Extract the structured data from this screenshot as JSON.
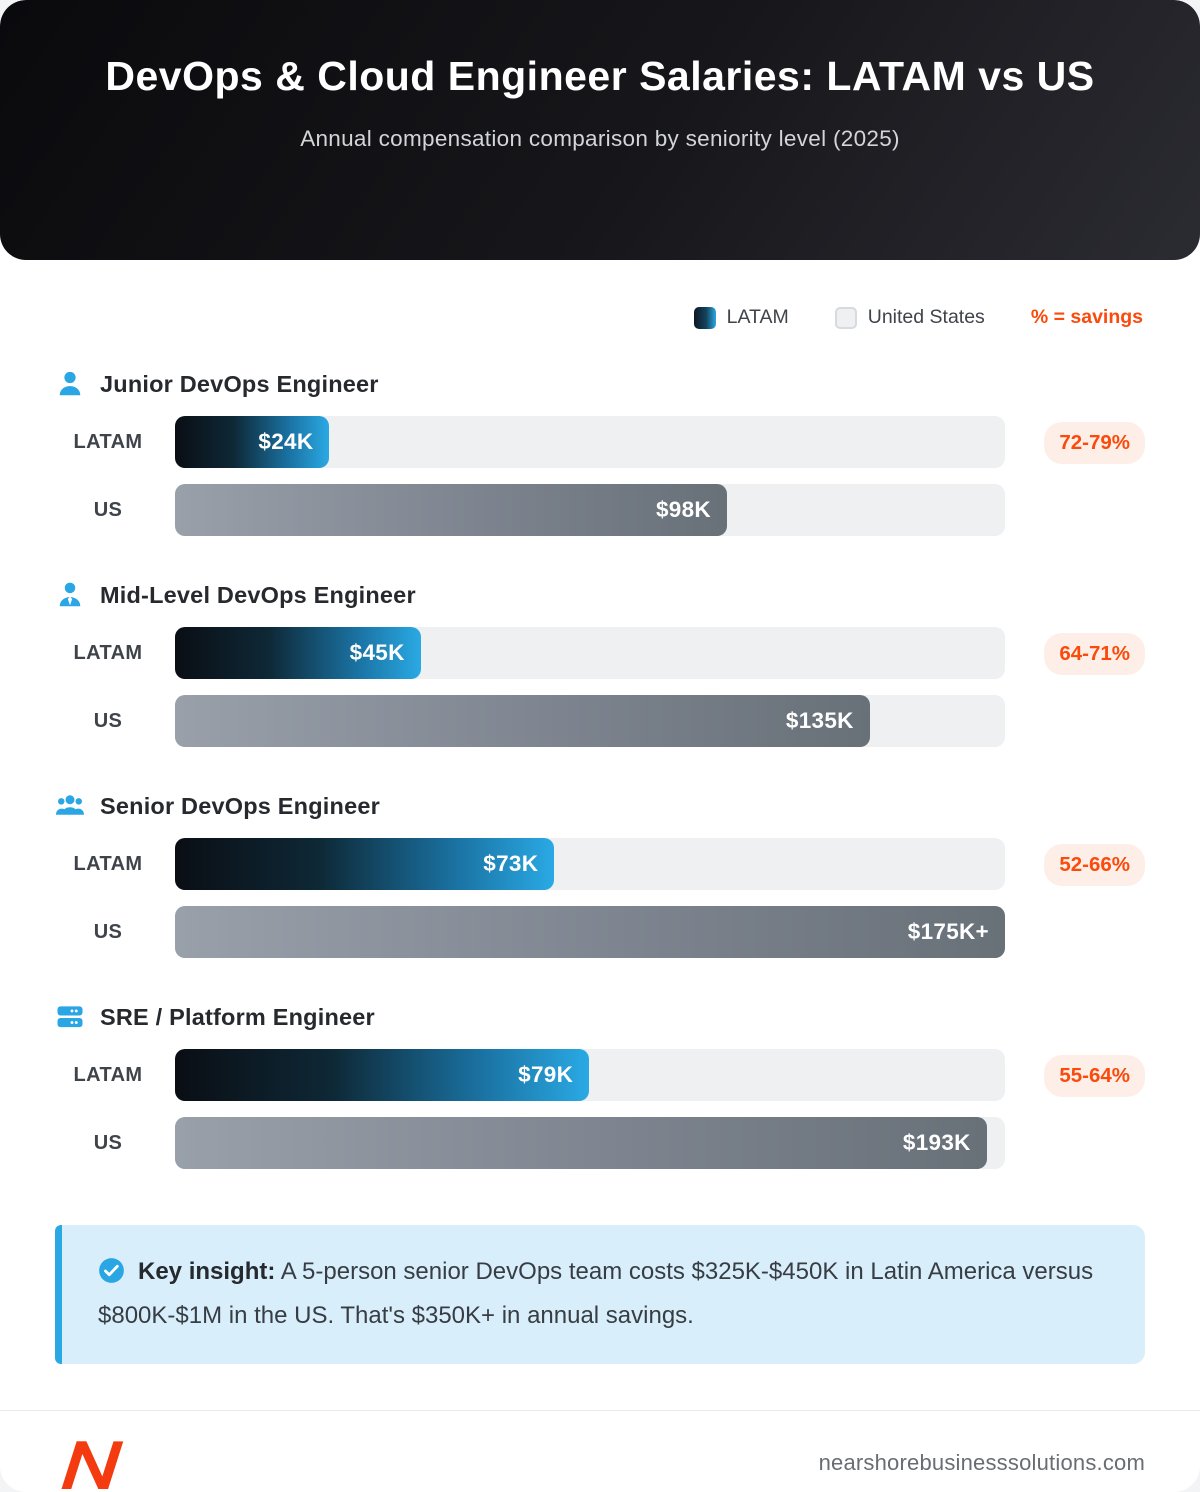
{
  "page": {
    "header": {
      "title": "DevOps & Cloud Engineer Salaries: LATAM vs US",
      "subtitle": "Annual compensation comparison by seniority level (2025)"
    },
    "legend": {
      "latam": "LATAM",
      "us": "United States",
      "savings_note": "% = savings"
    },
    "labels": {
      "latam": "LATAM",
      "us": "US"
    },
    "insight": {
      "title": "Key insight:",
      "text": " A 5-person senior DevOps team costs $325K-$450K in Latin America versus $800K-$1M in the US. That's $350K+ in annual savings."
    },
    "footer": {
      "domain": "nearshorebusinesssolutions.com"
    }
  },
  "colors": {
    "accent_blue": "#29A6E3",
    "accent_orange": "#FA4A0C",
    "badge_bg": "#FDEFE7",
    "bar_track": "#EEF0F2",
    "latam_gradient_start": "#0A0E14",
    "latam_gradient_end": "#2AA9E4",
    "us_gradient_start": "#99A0AA",
    "us_gradient_end": "#687078",
    "insight_bg": "#D8EEFA",
    "header_bg": "#111114",
    "logo_orange": "#F43B10"
  },
  "chart_data": {
    "type": "bar",
    "title": "DevOps & Cloud Engineer Salaries: LATAM vs US",
    "subtitle": "Annual compensation comparison by seniority level (2025)",
    "unit": "USD per year",
    "legend": [
      "LATAM",
      "United States"
    ],
    "sections": [
      {
        "role": "Junior DevOps Engineer",
        "icon": "person-icon",
        "latam_value": 24000,
        "latam_label": "$24K",
        "latam_pct": 18.6,
        "us_value": 98000,
        "us_label": "$98K",
        "us_pct": 66.5,
        "savings": "72-79%"
      },
      {
        "role": "Mid-Level DevOps Engineer",
        "icon": "person-tie-icon",
        "latam_value": 45000,
        "latam_label": "$45K",
        "latam_pct": 29.6,
        "us_value": 135000,
        "us_label": "$135K",
        "us_pct": 83.7,
        "savings": "64-71%"
      },
      {
        "role": "Senior DevOps Engineer",
        "icon": "team-icon",
        "latam_value": 73000,
        "latam_label": "$73K",
        "latam_pct": 45.7,
        "us_value": 175000,
        "us_label": "$175K+",
        "us_pct": 100,
        "savings": "52-66%"
      },
      {
        "role": "SRE / Platform Engineer",
        "icon": "server-icon",
        "latam_value": 79000,
        "latam_label": "$79K",
        "latam_pct": 49.9,
        "us_value": 193000,
        "us_label": "$193K",
        "us_pct": 97.8,
        "savings": "55-64%"
      }
    ]
  }
}
